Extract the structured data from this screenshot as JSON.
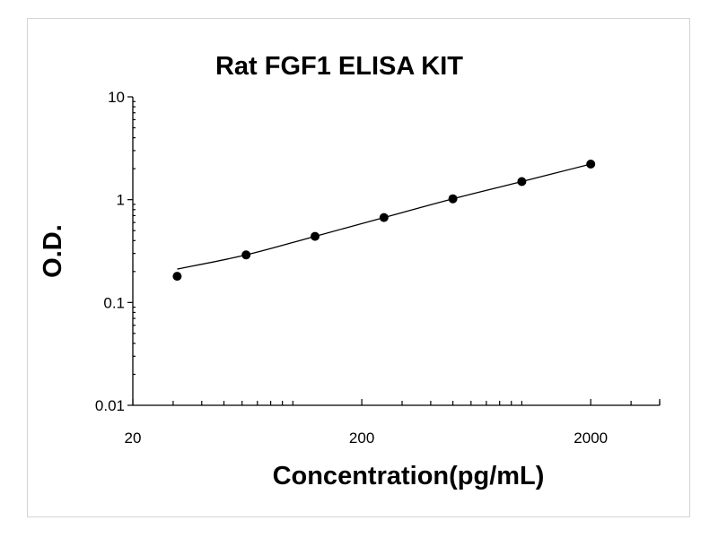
{
  "chart_data": {
    "type": "scatter",
    "title": "Rat FGF1 ELISA KIT",
    "xlabel": "Concentration(pg/mL)",
    "ylabel": "O.D.",
    "x_scale": "log",
    "y_scale": "log",
    "xlim": [
      20,
      4000
    ],
    "ylim": [
      0.01,
      10
    ],
    "x_ticks": [
      "20",
      "200",
      "2000"
    ],
    "y_ticks": [
      "10",
      "1",
      "0.1",
      "0.01"
    ],
    "grid": false,
    "legend": "none",
    "series": [
      {
        "x": [
          31.25,
          62.5,
          125,
          250,
          500,
          1000,
          2000
        ],
        "y": [
          0.18,
          0.29,
          0.44,
          0.67,
          1.02,
          1.5,
          2.22
        ],
        "line": "smooth fit",
        "marker": "filled-circle"
      }
    ],
    "colors": {
      "marker": "#000000",
      "line": "#000000",
      "frame_border": "#d4d4d4"
    }
  }
}
